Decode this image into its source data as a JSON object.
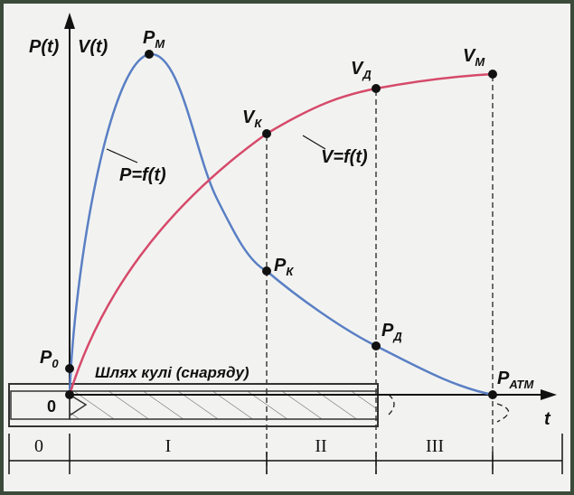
{
  "axes": {
    "p_axis": "P(t)",
    "v_axis": "V(t)",
    "t_axis": "t"
  },
  "points": {
    "p_max": {
      "text": "P",
      "sub": "М"
    },
    "v_k": {
      "text": "V",
      "sub": "К"
    },
    "v_d": {
      "text": "V",
      "sub": "Д"
    },
    "v_m": {
      "text": "V",
      "sub": "М"
    },
    "p_k": {
      "text": "P",
      "sub": "К"
    },
    "p_d": {
      "text": "P",
      "sub": "Д"
    },
    "p_0": {
      "text": "P",
      "sub": "0"
    },
    "p_atm": {
      "text": "P",
      "sub": "АТМ"
    }
  },
  "curves": {
    "pressure": "P=f(t)",
    "velocity": "V=f(t)"
  },
  "barrel": {
    "path_label": "Шлях кулі (снаряду)",
    "start": "0"
  },
  "periods": [
    "0",
    "I",
    "II",
    "III"
  ]
}
